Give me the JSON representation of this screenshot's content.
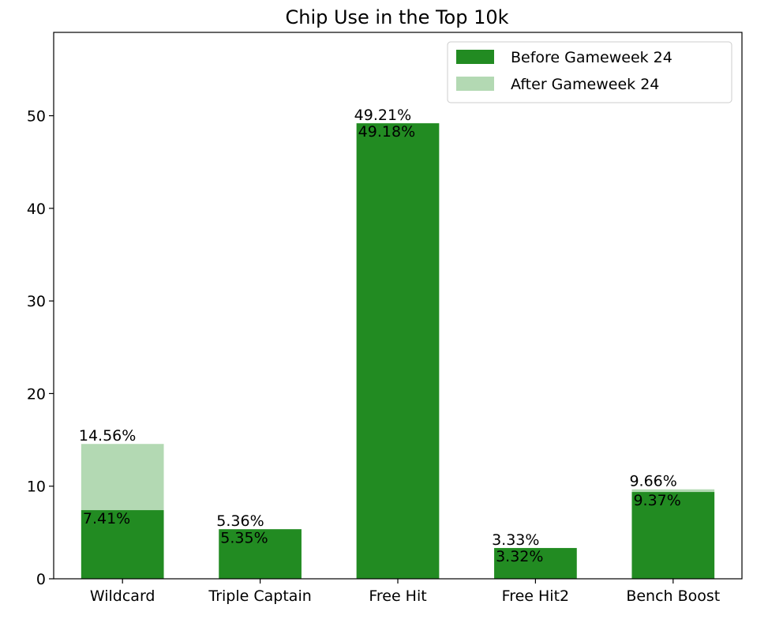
{
  "chart_data": {
    "type": "bar",
    "title": "Chip Use in the Top 10k",
    "xlabel": "",
    "ylabel": "",
    "ylim": [
      0,
      59
    ],
    "yticks": [
      0,
      10,
      20,
      30,
      40,
      50
    ],
    "categories": [
      "Wildcard",
      "Triple Captain",
      "Free Hit",
      "Free Hit2",
      "Bench Boost"
    ],
    "series": [
      {
        "name": "Before Gameweek 24",
        "color": "#228b22",
        "values": [
          7.41,
          5.35,
          49.18,
          3.32,
          9.37
        ],
        "labels": [
          "7.41%",
          "5.35%",
          "49.18%",
          "3.32%",
          "9.37%"
        ]
      },
      {
        "name": "After Gameweek 24",
        "color": "#b3d9b3",
        "values": [
          14.56,
          5.36,
          49.21,
          3.33,
          9.66
        ],
        "labels": [
          "14.56%",
          "5.36%",
          "49.21%",
          "3.33%",
          "9.66%"
        ]
      }
    ],
    "legend_position": "top-right",
    "grid": false
  }
}
